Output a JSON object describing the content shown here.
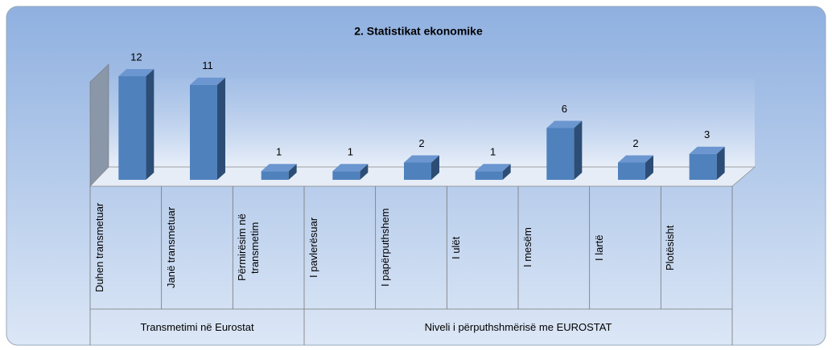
{
  "chart_data": {
    "type": "bar3d",
    "title": "2. Statistikat ekonomike",
    "categories": [
      "Duhen transmetuar",
      "Janë transmetuar",
      "Përmirësim në transmetim",
      "I pavlerësuar",
      "I papërputhshem",
      "I ulët",
      "I mesëm",
      "I lartë",
      "Plotësisht"
    ],
    "values": [
      12,
      11,
      1,
      1,
      2,
      1,
      6,
      2,
      3
    ],
    "groups": [
      {
        "label": "Transmetimi në Eurostat",
        "span": 3
      },
      {
        "label": "Niveli i përputhshmërisë me EUROSTAT",
        "span": 6
      }
    ],
    "color": "#4f81bd"
  }
}
